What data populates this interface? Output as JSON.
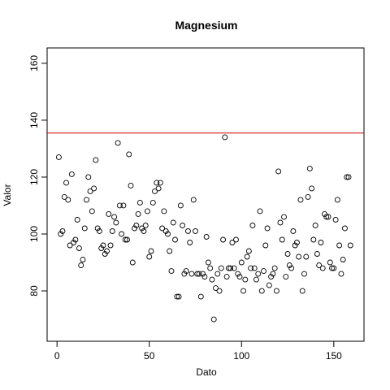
{
  "chart_data": {
    "type": "scatter",
    "title": "Magnesium",
    "x_label": "Dato",
    "y_label": "Valor",
    "x": [
      1,
      2,
      3,
      4,
      5,
      6,
      7,
      8,
      9,
      10,
      11,
      12,
      13,
      14,
      15,
      16,
      17,
      18,
      19,
      20,
      21,
      22,
      23,
      24,
      25,
      26,
      27,
      28,
      29,
      30,
      31,
      32,
      33,
      34,
      35,
      36,
      37,
      38,
      39,
      40,
      41,
      42,
      43,
      44,
      45,
      46,
      47,
      48,
      49,
      50,
      51,
      52,
      53,
      54,
      55,
      56,
      57,
      58,
      59,
      60,
      61,
      62,
      63,
      64,
      65,
      66,
      67,
      68,
      69,
      70,
      71,
      72,
      73,
      74,
      75,
      76,
      77,
      78,
      79,
      80,
      81,
      82,
      83,
      84,
      85,
      86,
      87,
      88,
      89,
      90,
      91,
      92,
      93,
      94,
      95,
      96,
      97,
      98,
      99,
      100,
      101,
      102,
      103,
      104,
      105,
      106,
      107,
      108,
      109,
      110,
      111,
      112,
      113,
      114,
      115,
      116,
      117,
      118,
      119,
      120,
      121,
      122,
      123,
      124,
      125,
      126,
      127,
      128,
      129,
      130,
      131,
      132,
      133,
      134,
      135,
      136,
      137,
      138,
      139,
      140,
      141,
      142,
      143,
      144,
      145,
      146,
      147,
      148,
      149,
      150,
      151,
      152,
      153,
      154,
      155,
      156,
      157,
      158,
      159
    ],
    "values": [
      127,
      100,
      101,
      113,
      118,
      112,
      96,
      121,
      97,
      98,
      105,
      95,
      89,
      91,
      102,
      112,
      120,
      115,
      108,
      116,
      126,
      102,
      101,
      95,
      96,
      93,
      94,
      107,
      96,
      101,
      106,
      104,
      132,
      110,
      100,
      110,
      98,
      98,
      128,
      117,
      90,
      102,
      103,
      107,
      111,
      102,
      101,
      103,
      108,
      92,
      94,
      111,
      115,
      118,
      116,
      118,
      102,
      108,
      101,
      100,
      94,
      87,
      104,
      98,
      78,
      78,
      110,
      103,
      86,
      87,
      101,
      97,
      86,
      112,
      101,
      86,
      86,
      78,
      86,
      85,
      99,
      90,
      88,
      84,
      70,
      81,
      86,
      80,
      88,
      98,
      134,
      85,
      88,
      88,
      97,
      88,
      98,
      86,
      85,
      90,
      80,
      84,
      92,
      94,
      88,
      103,
      88,
      84,
      86,
      108,
      80,
      87,
      96,
      102,
      82,
      85,
      86,
      88,
      80,
      122,
      104,
      98,
      106,
      85,
      93,
      89,
      88,
      101,
      96,
      97,
      92,
      112,
      80,
      86,
      92,
      113,
      123,
      116,
      98,
      103,
      93,
      89,
      97,
      88,
      107,
      106,
      106,
      90,
      88,
      88,
      105,
      112,
      96,
      86,
      91,
      102,
      120,
      120,
      96
    ],
    "color": "#000000",
    "hline": {
      "value": 135.5,
      "color": "#cc0000"
    },
    "xlim": [
      -5.36,
      166.36
    ],
    "ylim": [
      62.3,
      165.4
    ],
    "xticks": [
      0,
      50,
      100,
      150
    ],
    "yticks": [
      80,
      100,
      120,
      140,
      160
    ]
  }
}
